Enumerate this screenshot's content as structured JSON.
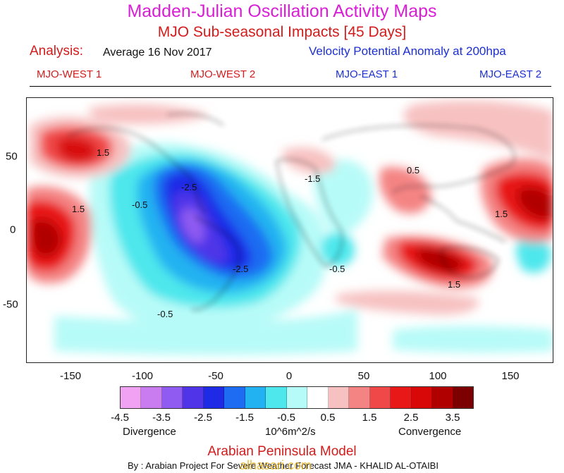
{
  "header": {
    "title": "Madden-Julian Oscillation Activity Maps",
    "subtitle": "MJO Sub-seasonal Impacts [45 Days]",
    "analysis_label": "Analysis:",
    "analysis_date": "Average 16 Nov 2017",
    "field": "Velocity Potential Anomaly at 200hpa"
  },
  "phases": [
    {
      "label": "MJO-WEST 1",
      "color": "#d21c1c"
    },
    {
      "label": "MJO-WEST 2",
      "color": "#d21c1c"
    },
    {
      "label": "MJO-EAST 1",
      "color": "#1b2fd0"
    },
    {
      "label": "MJO-EAST 2",
      "color": "#1b2fd0"
    }
  ],
  "map": {
    "lon_ticks": [
      "-150",
      "-100",
      "-50",
      "0",
      "50",
      "100",
      "150"
    ],
    "lat_ticks": [
      "50",
      "0",
      "-50"
    ],
    "contour_labels": [
      "1.5",
      "-2.5",
      "-0.5",
      "1.5",
      "-2.5",
      "-0.5",
      "-0.5",
      "1.5",
      "1.5",
      "-1.5",
      "0.5"
    ]
  },
  "colorbar": {
    "colors": [
      "#f2a2f2",
      "#c97cf0",
      "#8f5bf1",
      "#4f34e8",
      "#1e2ae6",
      "#1e6cf2",
      "#23b2f1",
      "#4de7ec",
      "#b7fbf8",
      "#ffffff",
      "#f7c1c1",
      "#f48484",
      "#f04848",
      "#e81818",
      "#d80808",
      "#b10000",
      "#7d0000"
    ],
    "tick_labels": [
      "-4.5",
      "-3.5",
      "-2.5",
      "-1.5",
      "-0.5",
      "0.5",
      "1.5",
      "2.5",
      "3.5"
    ],
    "divergence_label": "Divergence",
    "units": "10^6m^2/s",
    "convergence_label": "Convergence"
  },
  "footer": {
    "model": "Arabian Peninsula Model",
    "credit": "By : Arabian Project For Severe Weather Forecast  JMA - KHALID AL-OTAIBI",
    "watermark": "alhasari.com"
  }
}
